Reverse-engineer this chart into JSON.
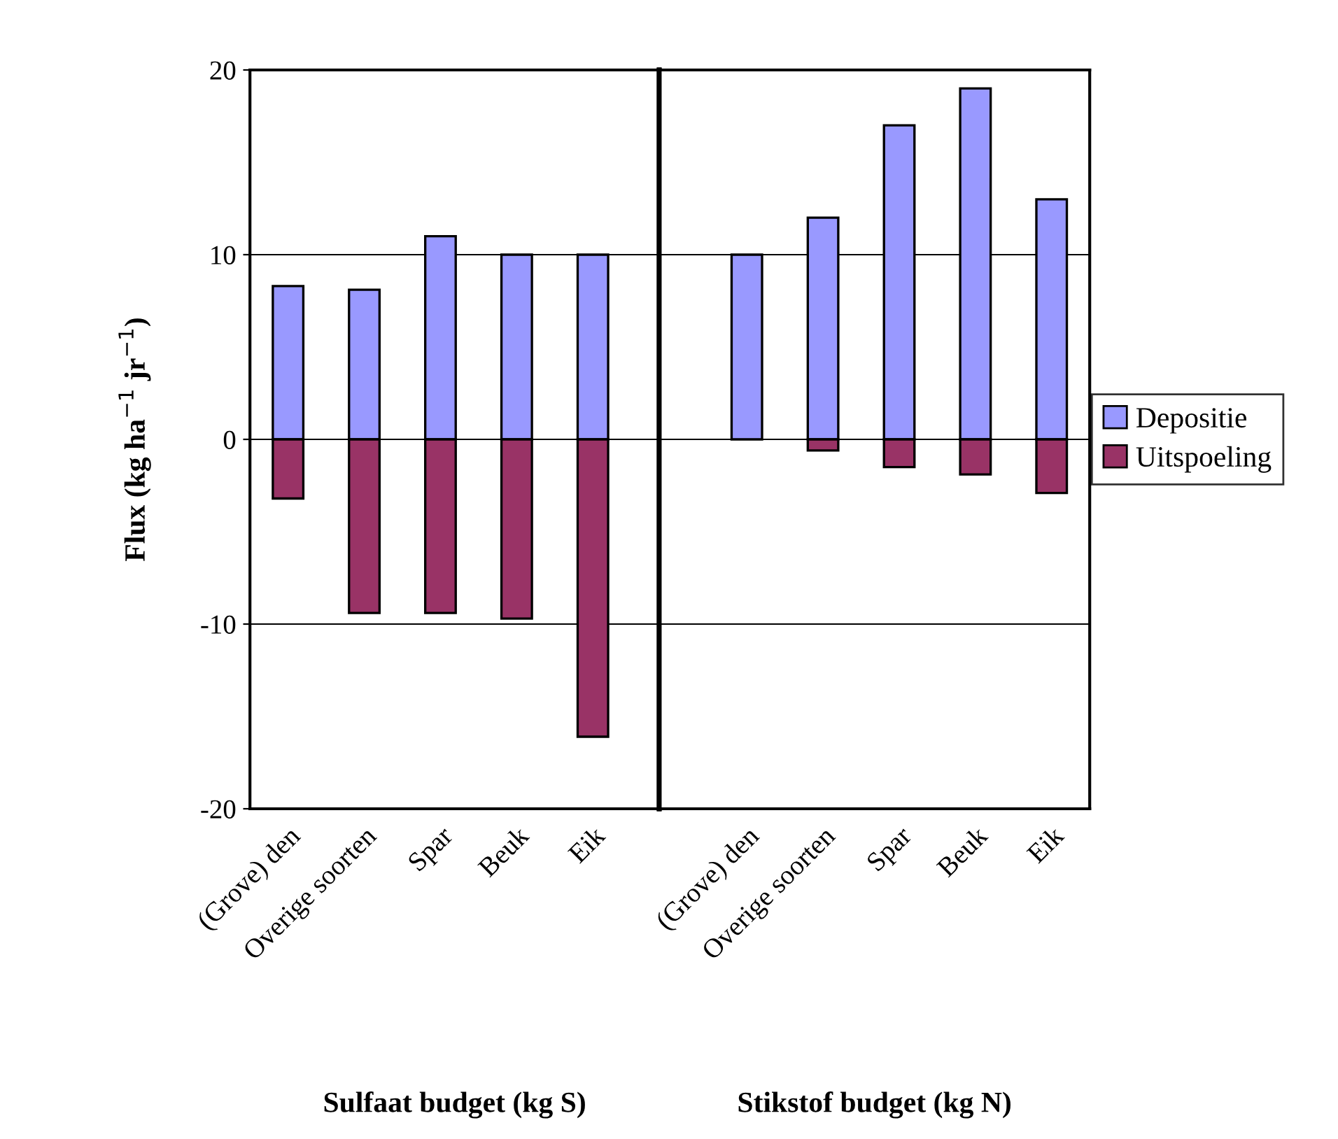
{
  "chart_data": [
    {
      "type": "bar",
      "stacked": true,
      "ylabel": "Flux (kg ha$^{−1}$ jr$^{−1}$)",
      "xlabel": "Sulfaat budget (kg S)",
      "categories": [
        "(Grove) den",
        "Overige soorten",
        "Spar",
        "Beuk",
        "Eik"
      ],
      "series": [
        {
          "color": "#9999ff",
          "values": [
            8.3,
            8.1,
            11.0,
            10.0,
            10.0
          ]
        },
        {
          "color": "#993366",
          "values": [
            -3.2,
            -9.4,
            -9.4,
            -9.7,
            -16.1
          ]
        }
      ],
      "ylim": [
        -20,
        20
      ],
      "yticks": [
        -20,
        -10,
        0,
        10,
        20
      ],
      "grid": "y"
    },
    {
      "type": "bar",
      "stacked": true,
      "xlabel": "Stikstof budget (kg N)",
      "categories": [
        "(Grove) den",
        "Overige soorten",
        "Spar",
        "Beuk",
        "Eik"
      ],
      "series": [
        {
          "name": "Depositie",
          "color": "#9999ff",
          "values": [
            10.0,
            12.0,
            17.0,
            19.0,
            13.0
          ]
        },
        {
          "name": "Uitspoeling",
          "color": "#993366",
          "values": [
            null,
            -0.6,
            -1.5,
            -1.9,
            -2.9
          ]
        }
      ],
      "ylim": [
        -20,
        20
      ],
      "grid": "y",
      "legend": "right",
      "tick_labels": "x"
    }
  ]
}
